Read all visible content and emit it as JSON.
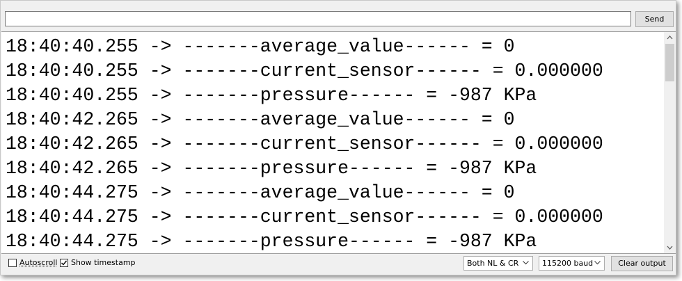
{
  "input": {
    "text": "",
    "send_button": "Send"
  },
  "output": {
    "lines": [
      "18:40:40.255 -> -------average_value------ = 0",
      "18:40:40.255 -> -------current_sensor------ = 0.000000",
      "18:40:40.255 -> -------pressure------ = -987 KPa",
      "18:40:42.265 -> -------average_value------ = 0",
      "18:40:42.265 -> -------current_sensor------ = 0.000000",
      "18:40:42.265 -> -------pressure------ = -987 KPa",
      "18:40:44.275 -> -------average_value------ = 0",
      "18:40:44.275 -> -------current_sensor------ = 0.000000",
      "18:40:44.275 -> -------pressure------ = -987 KPa"
    ]
  },
  "footer": {
    "autoscroll": {
      "label": "Autoscroll",
      "checked": false
    },
    "show_timestamp": {
      "label": "Show timestamp",
      "checked": true
    },
    "line_ending": "Both NL & CR",
    "baud_rate": "115200 baud",
    "clear_button": "Clear output"
  }
}
